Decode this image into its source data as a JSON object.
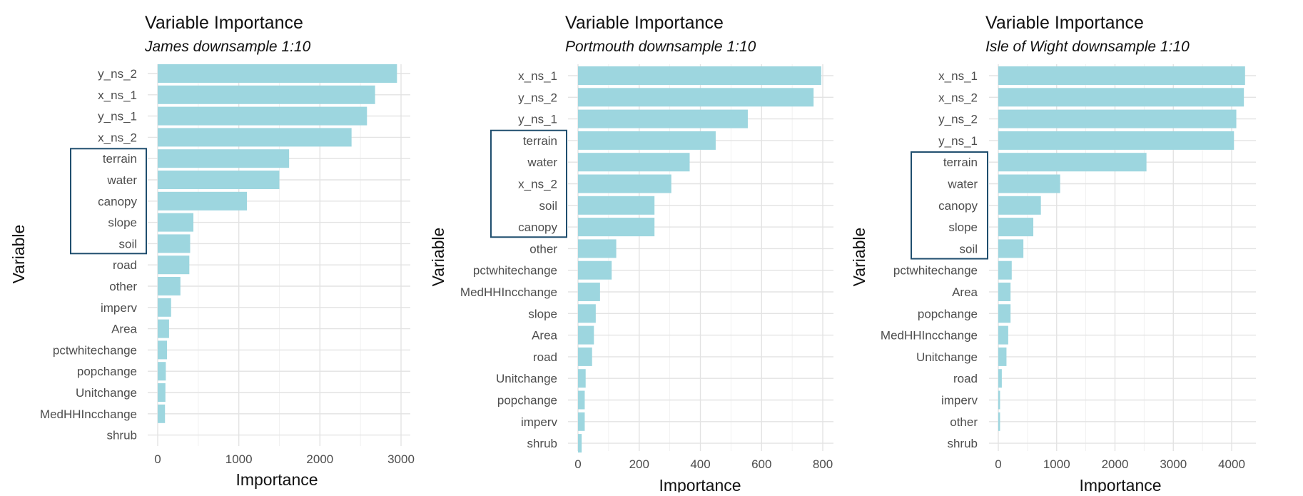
{
  "colors": {
    "bar": "#9dd6df",
    "highlight_box": "#1f4e6e",
    "grid": "#e3e3e3",
    "text": "#111111",
    "tick_text": "#4d4d4d"
  },
  "chart_data": [
    {
      "type": "bar",
      "orientation": "horizontal",
      "title": "Variable Importance",
      "subtitle": "James downsample 1:10",
      "xlabel": "Importance",
      "ylabel": "Variable",
      "xlim": [
        0,
        3000
      ],
      "xticks": [
        0,
        1000,
        2000,
        3000
      ],
      "grid": true,
      "categories": [
        "y_ns_2",
        "x_ns_1",
        "y_ns_1",
        "x_ns_2",
        "terrain",
        "water",
        "canopy",
        "slope",
        "soil",
        "road",
        "other",
        "imperv",
        "Area",
        "pctwhitechange",
        "popchange",
        "Unitchange",
        "MedHHIncchange",
        "shrub"
      ],
      "values": [
        2950,
        2680,
        2580,
        2390,
        1620,
        1500,
        1100,
        440,
        400,
        390,
        280,
        165,
        140,
        115,
        100,
        95,
        90,
        0
      ],
      "highlighted_categories": [
        "terrain",
        "water",
        "canopy",
        "slope",
        "soil"
      ]
    },
    {
      "type": "bar",
      "orientation": "horizontal",
      "title": "Variable Importance",
      "subtitle": "Portmouth downsample 1:10",
      "xlabel": "Importance",
      "ylabel": "Variable",
      "xlim": [
        0,
        800
      ],
      "xticks": [
        0,
        200,
        400,
        600,
        800
      ],
      "grid": true,
      "categories": [
        "x_ns_1",
        "y_ns_2",
        "y_ns_1",
        "terrain",
        "water",
        "x_ns_2",
        "soil",
        "canopy",
        "other",
        "pctwhitechange",
        "MedHHIncchange",
        "slope",
        "Area",
        "road",
        "Unitchange",
        "popchange",
        "imperv",
        "shrub"
      ],
      "values": [
        795,
        770,
        555,
        450,
        365,
        305,
        250,
        250,
        125,
        110,
        72,
        58,
        52,
        46,
        25,
        22,
        22,
        12
      ],
      "highlighted_categories": [
        "terrain",
        "water",
        "x_ns_2",
        "soil",
        "canopy"
      ]
    },
    {
      "type": "bar",
      "orientation": "horizontal",
      "title": "Variable Importance",
      "subtitle": "Isle of Wight downsample 1:10",
      "xlabel": "Importance",
      "ylabel": "Variable",
      "xlim": [
        0,
        4000
      ],
      "xticks": [
        0,
        1000,
        2000,
        3000,
        4000
      ],
      "grid": true,
      "categories": [
        "x_ns_1",
        "x_ns_2",
        "y_ns_2",
        "y_ns_1",
        "terrain",
        "water",
        "canopy",
        "slope",
        "soil",
        "pctwhitechange",
        "Area",
        "popchange",
        "MedHHIncchange",
        "Unitchange",
        "road",
        "imperv",
        "other",
        "shrub"
      ],
      "values": [
        4230,
        4210,
        4080,
        4040,
        2540,
        1060,
        730,
        600,
        430,
        230,
        210,
        210,
        170,
        140,
        60,
        30,
        30,
        0
      ],
      "highlighted_categories": [
        "terrain",
        "water",
        "canopy",
        "slope",
        "soil"
      ]
    }
  ]
}
